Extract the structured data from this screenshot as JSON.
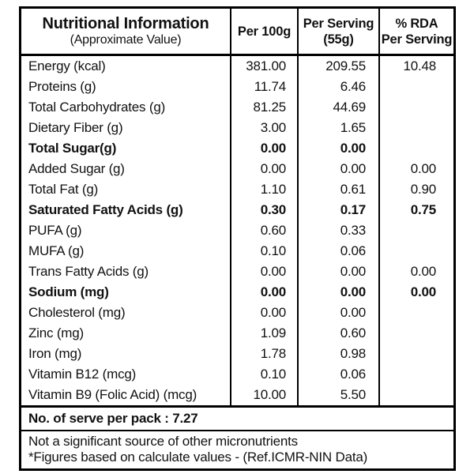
{
  "header": {
    "col1_title": "Nutritional Information",
    "col1_subtitle": "(Approximate Value)",
    "col2": "Per 100g",
    "col3_line1": "Per Serving",
    "col3_line2": "(55g)",
    "col4_line1": "% RDA",
    "col4_line2": "Per Serving"
  },
  "rows": [
    {
      "label": "Energy (kcal)",
      "per100g": "381.00",
      "perServing": "209.55",
      "rda": "10.48",
      "bold": false
    },
    {
      "label": "Proteins (g)",
      "per100g": "11.74",
      "perServing": "6.46",
      "rda": "",
      "bold": false
    },
    {
      "label": "Total Carbohydrates (g)",
      "per100g": "81.25",
      "perServing": "44.69",
      "rda": "",
      "bold": false
    },
    {
      "label": "Dietary Fiber (g)",
      "per100g": "3.00",
      "perServing": "1.65",
      "rda": "",
      "bold": false
    },
    {
      "label": "Total Sugar(g)",
      "per100g": "0.00",
      "perServing": "0.00",
      "rda": "",
      "bold": true
    },
    {
      "label": "Added Sugar (g)",
      "per100g": "0.00",
      "perServing": "0.00",
      "rda": "0.00",
      "bold": false
    },
    {
      "label": "Total Fat (g)",
      "per100g": "1.10",
      "perServing": "0.61",
      "rda": "0.90",
      "bold": false
    },
    {
      "label": "Saturated Fatty Acids (g)",
      "per100g": "0.30",
      "perServing": "0.17",
      "rda": "0.75",
      "bold": true
    },
    {
      "label": "PUFA (g)",
      "per100g": "0.60",
      "perServing": "0.33",
      "rda": "",
      "bold": false
    },
    {
      "label": "MUFA (g)",
      "per100g": "0.10",
      "perServing": "0.06",
      "rda": "",
      "bold": false
    },
    {
      "label": "Trans Fatty Acids (g)",
      "per100g": "0.00",
      "perServing": "0.00",
      "rda": "0.00",
      "bold": false
    },
    {
      "label": "Sodium (mg)",
      "per100g": "0.00",
      "perServing": "0.00",
      "rda": "0.00",
      "bold": true
    },
    {
      "label": "Cholesterol (mg)",
      "per100g": "0.00",
      "perServing": "0.00",
      "rda": "",
      "bold": false
    },
    {
      "label": "Zinc (mg)",
      "per100g": "1.09",
      "perServing": "0.60",
      "rda": "",
      "bold": false
    },
    {
      "label": "Iron (mg)",
      "per100g": "1.78",
      "perServing": "0.98",
      "rda": "",
      "bold": false
    },
    {
      "label": "Vitamin B12 (mcg)",
      "per100g": "0.10",
      "perServing": "0.06",
      "rda": "",
      "bold": false
    },
    {
      "label": "Vitamin B9 (Folic Acid) (mcg)",
      "per100g": "10.00",
      "perServing": "5.50",
      "rda": "",
      "bold": false
    }
  ],
  "serve_note": "No. of serve per pack : 7.27",
  "footnotes": {
    "line1": "Not a significant source of other micronutrients",
    "line2": "*Figures based on calculate values - (Ref.ICMR-NIN Data)"
  },
  "colors": {
    "border": "#000000",
    "background": "#ffffff",
    "text": "#111111"
  }
}
